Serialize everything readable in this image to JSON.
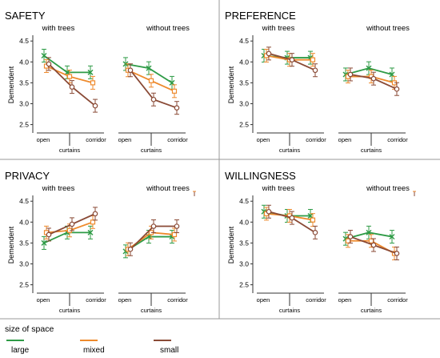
{
  "chart_data": [
    {
      "type": "line",
      "title": "SAFETY",
      "group_labels": [
        "with trees",
        "without trees"
      ],
      "categories": [
        "open",
        "curtains",
        "corridor"
      ],
      "ylabel": "Demendent",
      "ylim": [
        2.3,
        4.6
      ],
      "yticks": [
        "2.5",
        "3.0",
        "3.5",
        "4.0",
        "4.5"
      ],
      "series": [
        {
          "name": "large",
          "groups": [
            [
              4.15,
              3.75,
              3.75
            ],
            [
              3.95,
              3.85,
              3.5
            ]
          ]
        },
        {
          "name": "mixed",
          "groups": [
            [
              3.9,
              3.65,
              3.5
            ],
            [
              3.8,
              3.55,
              3.3
            ]
          ]
        },
        {
          "name": "small",
          "groups": [
            [
              3.95,
              3.4,
              2.95
            ],
            [
              3.8,
              3.1,
              2.9
            ]
          ]
        }
      ]
    },
    {
      "type": "line",
      "title": "PREFERENCE",
      "group_labels": [
        "with trees",
        "without trees"
      ],
      "categories": [
        "open",
        "curtains",
        "corridor"
      ],
      "ylabel": "Demendent",
      "ylim": [
        2.3,
        4.6
      ],
      "yticks": [
        "2.5",
        "3.0",
        "3.5",
        "4.0",
        "4.5"
      ],
      "series": [
        {
          "name": "large",
          "groups": [
            [
              4.15,
              4.1,
              4.1
            ],
            [
              3.7,
              3.85,
              3.7
            ]
          ]
        },
        {
          "name": "mixed",
          "groups": [
            [
              4.15,
              4.05,
              4.05
            ],
            [
              3.65,
              3.65,
              3.5
            ]
          ]
        },
        {
          "name": "small",
          "groups": [
            [
              4.2,
              4.05,
              3.8
            ],
            [
              3.7,
              3.6,
              3.35
            ]
          ]
        }
      ]
    },
    {
      "type": "line",
      "title": "PRIVACY",
      "group_labels": [
        "with trees",
        "without trees"
      ],
      "categories": [
        "open",
        "curtains",
        "corridor"
      ],
      "ylabel": "Demendent",
      "ylim": [
        2.3,
        4.6
      ],
      "yticks": [
        "2.5",
        "3.0",
        "3.5",
        "4.0",
        "4.5"
      ],
      "series": [
        {
          "name": "large",
          "groups": [
            [
              3.5,
              3.75,
              3.75
            ],
            [
              3.3,
              3.65,
              3.65
            ]
          ]
        },
        {
          "name": "mixed",
          "groups": [
            [
              3.75,
              3.8,
              4.0
            ],
            [
              3.35,
              3.75,
              3.7
            ]
          ]
        },
        {
          "name": "small",
          "groups": [
            [
              3.7,
              3.95,
              4.2
            ],
            [
              3.35,
              3.9,
              3.9
            ]
          ]
        }
      ]
    },
    {
      "type": "line",
      "title": "WILLINGNESS",
      "group_labels": [
        "with trees",
        "without trees"
      ],
      "categories": [
        "open",
        "curtains",
        "corridor"
      ],
      "ylabel": "Demendent",
      "ylim": [
        2.3,
        4.6
      ],
      "yticks": [
        "2.5",
        "3.0",
        "3.5",
        "4.0",
        "4.5"
      ],
      "series": [
        {
          "name": "large",
          "groups": [
            [
              4.25,
              4.15,
              4.15
            ],
            [
              3.6,
              3.75,
              3.65
            ]
          ]
        },
        {
          "name": "mixed",
          "groups": [
            [
              4.2,
              4.15,
              4.05
            ],
            [
              3.55,
              3.55,
              3.25
            ]
          ]
        },
        {
          "name": "small",
          "groups": [
            [
              4.25,
              4.1,
              3.75
            ],
            [
              3.65,
              3.45,
              3.25
            ]
          ]
        }
      ]
    }
  ],
  "legend": {
    "title": "size of space",
    "items": [
      {
        "label": "large",
        "color": "#2e9b46"
      },
      {
        "label": "mixed",
        "color": "#ee8a2c"
      },
      {
        "label": "small",
        "color": "#8a4a36"
      }
    ]
  }
}
